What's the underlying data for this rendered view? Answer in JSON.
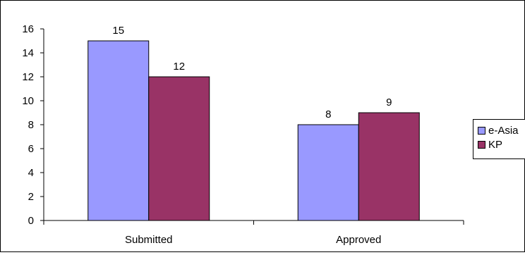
{
  "chart_data": {
    "type": "bar",
    "categories": [
      "Submitted",
      "Approved"
    ],
    "series": [
      {
        "name": "e-Asia",
        "values": [
          15,
          8
        ],
        "color": "#9999ff"
      },
      {
        "name": "KP",
        "values": [
          12,
          9
        ],
        "color": "#993366"
      }
    ],
    "ylim": [
      0,
      16
    ],
    "yticks": [
      0,
      2,
      4,
      6,
      8,
      10,
      12,
      14,
      16
    ],
    "data_labels": true,
    "grid": false,
    "legend": "right",
    "title": "",
    "xlabel": "",
    "ylabel": ""
  }
}
